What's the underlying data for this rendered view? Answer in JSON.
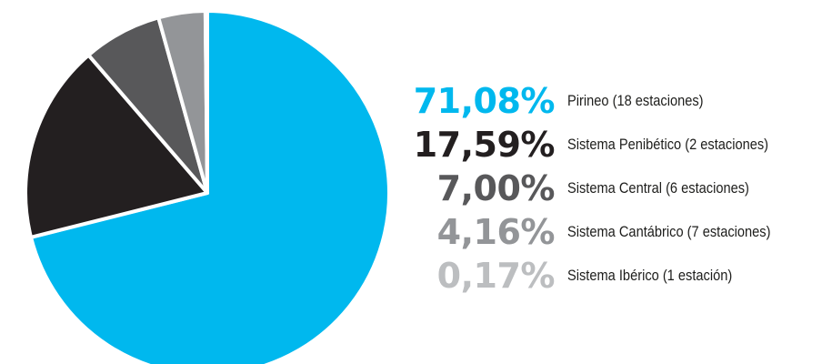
{
  "chart_data": {
    "type": "pie",
    "slices": [
      {
        "value": 71.08,
        "percent_label": "71,08%",
        "label": "Pirineo (18 estaciones)",
        "color": "#00b8ee"
      },
      {
        "value": 17.59,
        "percent_label": "17,59%",
        "label": "Sistema Penibético (2 estaciones)",
        "color": "#231f20"
      },
      {
        "value": 7.0,
        "percent_label": "7,00%",
        "label": "Sistema Central (6 estaciones)",
        "color": "#58585a"
      },
      {
        "value": 4.16,
        "percent_label": "4,16%",
        "label": "Sistema Cantábrico (7 estaciones)",
        "color": "#939598"
      },
      {
        "value": 0.17,
        "percent_label": "0,17%",
        "label": "Sistema Ibérico (1 estación)",
        "color": "#bcbec0"
      }
    ],
    "legend_placement": "right",
    "start_angle": "top",
    "direction": "clockwise"
  }
}
